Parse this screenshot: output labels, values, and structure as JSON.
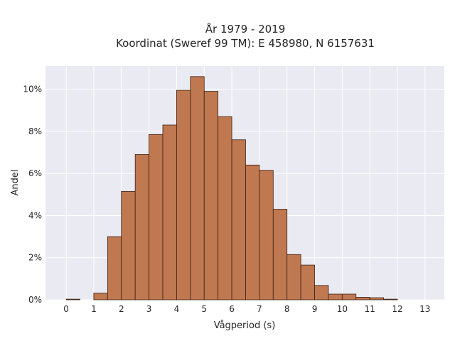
{
  "chart_data": {
    "type": "bar",
    "title": [
      "År 1979 - 2019",
      "Koordinat (Sweref 99 TM): E 458980, N 6157631"
    ],
    "xlabel": "Vågperiod (s)",
    "ylabel": "Andel",
    "xlim": [
      -0.75,
      13.7
    ],
    "ylim": [
      0,
      11.1
    ],
    "x_ticks": [
      0,
      1,
      2,
      3,
      4,
      5,
      6,
      7,
      8,
      9,
      10,
      11,
      12,
      13
    ],
    "y_ticks": [
      0,
      2,
      4,
      6,
      8,
      10
    ],
    "y_tick_format": "%",
    "grid": true,
    "bin_width": 0.5,
    "bins": [
      {
        "start": 0.0,
        "value": 0.03
      },
      {
        "start": 0.5,
        "value": 0.0
      },
      {
        "start": 1.0,
        "value": 0.32
      },
      {
        "start": 1.5,
        "value": 3.0
      },
      {
        "start": 2.0,
        "value": 5.15
      },
      {
        "start": 2.5,
        "value": 6.9
      },
      {
        "start": 3.0,
        "value": 7.85
      },
      {
        "start": 3.5,
        "value": 8.3
      },
      {
        "start": 4.0,
        "value": 9.95
      },
      {
        "start": 4.5,
        "value": 10.6
      },
      {
        "start": 5.0,
        "value": 9.9
      },
      {
        "start": 5.5,
        "value": 8.7
      },
      {
        "start": 6.0,
        "value": 7.6
      },
      {
        "start": 6.5,
        "value": 6.4
      },
      {
        "start": 7.0,
        "value": 6.15
      },
      {
        "start": 7.5,
        "value": 4.3
      },
      {
        "start": 8.0,
        "value": 2.15
      },
      {
        "start": 8.5,
        "value": 1.65
      },
      {
        "start": 9.0,
        "value": 0.68
      },
      {
        "start": 9.5,
        "value": 0.27
      },
      {
        "start": 10.0,
        "value": 0.27
      },
      {
        "start": 10.5,
        "value": 0.12
      },
      {
        "start": 11.0,
        "value": 0.1
      },
      {
        "start": 11.5,
        "value": 0.03
      }
    ],
    "colors": {
      "bar_fill": "#c07850",
      "bar_edge": "#3a2216",
      "plot_background": "#eaeaf2",
      "grid": "#ffffff"
    }
  }
}
